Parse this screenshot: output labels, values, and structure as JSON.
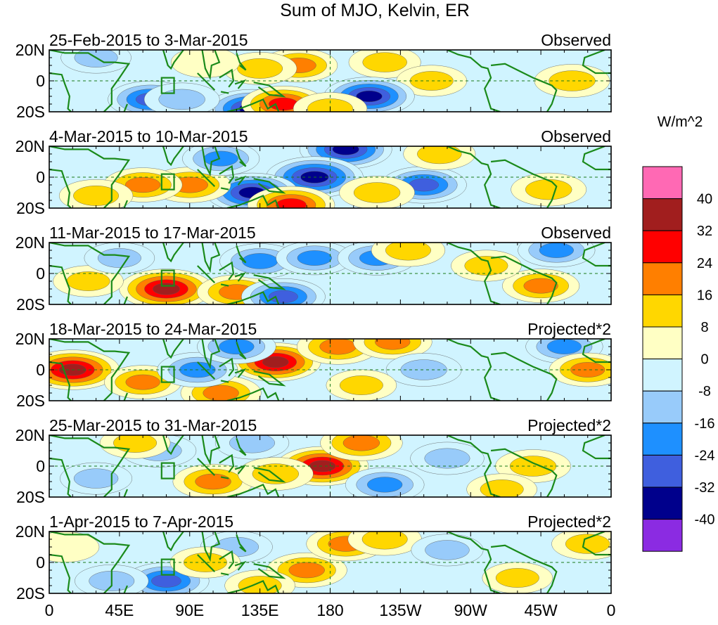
{
  "chart_data": {
    "type": "heatmap",
    "title": "Sum of MJO, Kelvin, ER",
    "units": "W/m^2",
    "x_ticks": [
      "0",
      "45E",
      "90E",
      "135E",
      "180",
      "135W",
      "90W",
      "45W",
      "0"
    ],
    "y_ticks": [
      "20N",
      "0",
      "20S"
    ],
    "lon_range": [
      0,
      360
    ],
    "lat_range": [
      -20,
      20
    ],
    "colorbar": {
      "labels": [
        "40",
        "32",
        "24",
        "16",
        "8",
        "0",
        "-8",
        "-16",
        "-24",
        "-32",
        "-40"
      ],
      "levels": [
        40,
        32,
        24,
        16,
        8,
        0,
        -8,
        -16,
        -24,
        -32,
        -40
      ],
      "colors": [
        "#ff69b4",
        "#a11e1e",
        "#ff0000",
        "#ff7f00",
        "#ffd700",
        "#ffffc4",
        "#d0f4ff",
        "#98cbfa",
        "#1e90ff",
        "#3f5fde",
        "#00008c",
        "#8b2be2"
      ]
    },
    "panels": [
      {
        "date_range": "25-Feb-2015 to 3-Mar-2015",
        "label": "Observed",
        "anomalies": [
          {
            "lon": 160,
            "lat": 10,
            "value": 18
          },
          {
            "lon": 215,
            "lat": 12,
            "value": 12
          },
          {
            "lon": 135,
            "lat": 8,
            "value": 14
          },
          {
            "lon": 245,
            "lat": 0,
            "value": 10
          },
          {
            "lon": 335,
            "lat": 0,
            "value": 16
          },
          {
            "lon": 65,
            "lat": -12,
            "value": -28
          },
          {
            "lon": 130,
            "lat": -18,
            "value": -34
          },
          {
            "lon": 205,
            "lat": -10,
            "value": -34
          },
          {
            "lon": 150,
            "lat": -15,
            "value": 26
          },
          {
            "lon": 85,
            "lat": -12,
            "value": -16
          },
          {
            "lon": 30,
            "lat": 15,
            "value": -10
          },
          {
            "lon": 100,
            "lat": 12,
            "value": 8
          },
          {
            "lon": 180,
            "lat": -18,
            "value": 14
          }
        ]
      },
      {
        "date_range": "4-Mar-2015 to 10-Mar-2015",
        "label": "Observed",
        "anomalies": [
          {
            "lon": 190,
            "lat": 18,
            "value": -36
          },
          {
            "lon": 170,
            "lat": 0,
            "value": -42
          },
          {
            "lon": 240,
            "lat": -5,
            "value": -28
          },
          {
            "lon": 130,
            "lat": -10,
            "value": -36
          },
          {
            "lon": 90,
            "lat": -5,
            "value": 24
          },
          {
            "lon": 60,
            "lat": -5,
            "value": 20
          },
          {
            "lon": 210,
            "lat": -10,
            "value": 16
          },
          {
            "lon": 320,
            "lat": -8,
            "value": 16
          },
          {
            "lon": 30,
            "lat": -12,
            "value": 14
          },
          {
            "lon": 110,
            "lat": 12,
            "value": -18
          },
          {
            "lon": 250,
            "lat": 15,
            "value": 12
          },
          {
            "lon": 155,
            "lat": -18,
            "value": 30
          }
        ]
      },
      {
        "date_range": "11-Mar-2015 to 17-Mar-2015",
        "label": "Observed",
        "anomalies": [
          {
            "lon": 75,
            "lat": -10,
            "value": 38
          },
          {
            "lon": 120,
            "lat": -12,
            "value": 20
          },
          {
            "lon": 135,
            "lat": 8,
            "value": -22
          },
          {
            "lon": 150,
            "lat": -15,
            "value": -26
          },
          {
            "lon": 170,
            "lat": 10,
            "value": -18
          },
          {
            "lon": 210,
            "lat": 10,
            "value": -20
          },
          {
            "lon": 230,
            "lat": 15,
            "value": 14
          },
          {
            "lon": 315,
            "lat": -8,
            "value": 18
          },
          {
            "lon": 325,
            "lat": 15,
            "value": -18
          },
          {
            "lon": 25,
            "lat": -5,
            "value": 10
          },
          {
            "lon": 45,
            "lat": 10,
            "value": -10
          },
          {
            "lon": 280,
            "lat": 5,
            "value": 10
          }
        ]
      },
      {
        "date_range": "18-Mar-2015 to 24-Mar-2015",
        "label": "Projected*2",
        "anomalies": [
          {
            "lon": 15,
            "lat": 0,
            "value": 38
          },
          {
            "lon": 145,
            "lat": 5,
            "value": 34
          },
          {
            "lon": 185,
            "lat": 15,
            "value": 24
          },
          {
            "lon": 220,
            "lat": 18,
            "value": 20
          },
          {
            "lon": 110,
            "lat": -15,
            "value": 22
          },
          {
            "lon": 60,
            "lat": -8,
            "value": 18
          },
          {
            "lon": 95,
            "lat": 0,
            "value": -22
          },
          {
            "lon": 120,
            "lat": 15,
            "value": -20
          },
          {
            "lon": 240,
            "lat": 0,
            "value": -16
          },
          {
            "lon": 330,
            "lat": 15,
            "value": -18
          },
          {
            "lon": 345,
            "lat": 0,
            "value": 18
          },
          {
            "lon": 200,
            "lat": -10,
            "value": 10
          }
        ]
      },
      {
        "date_range": "25-Mar-2015 to 31-Mar-2015",
        "label": "Projected*2",
        "anomalies": [
          {
            "lon": 175,
            "lat": 0,
            "value": 36
          },
          {
            "lon": 200,
            "lat": 15,
            "value": 24
          },
          {
            "lon": 105,
            "lat": -10,
            "value": 22
          },
          {
            "lon": 145,
            "lat": -5,
            "value": 16
          },
          {
            "lon": 70,
            "lat": 10,
            "value": -16
          },
          {
            "lon": 130,
            "lat": 15,
            "value": -14
          },
          {
            "lon": 215,
            "lat": -12,
            "value": -20
          },
          {
            "lon": 255,
            "lat": 5,
            "value": -14
          },
          {
            "lon": 310,
            "lat": 0,
            "value": 16
          },
          {
            "lon": 30,
            "lat": -8,
            "value": -12
          },
          {
            "lon": 55,
            "lat": 15,
            "value": 10
          },
          {
            "lon": 290,
            "lat": -15,
            "value": 10
          }
        ]
      },
      {
        "date_range": "1-Apr-2015 to 7-Apr-2015",
        "label": "Projected*2",
        "anomalies": [
          {
            "lon": 165,
            "lat": -5,
            "value": 22
          },
          {
            "lon": 190,
            "lat": 12,
            "value": 20
          },
          {
            "lon": 215,
            "lat": 15,
            "value": 14
          },
          {
            "lon": 75,
            "lat": -12,
            "value": -28
          },
          {
            "lon": 40,
            "lat": -12,
            "value": -14
          },
          {
            "lon": 120,
            "lat": 10,
            "value": -12
          },
          {
            "lon": 255,
            "lat": 8,
            "value": -12
          },
          {
            "lon": 300,
            "lat": -10,
            "value": 10
          },
          {
            "lon": 345,
            "lat": 12,
            "value": 12
          },
          {
            "lon": 100,
            "lat": 0,
            "value": 10
          },
          {
            "lon": 135,
            "lat": -15,
            "value": 10
          },
          {
            "lon": 10,
            "lat": 10,
            "value": 8
          }
        ]
      }
    ]
  }
}
